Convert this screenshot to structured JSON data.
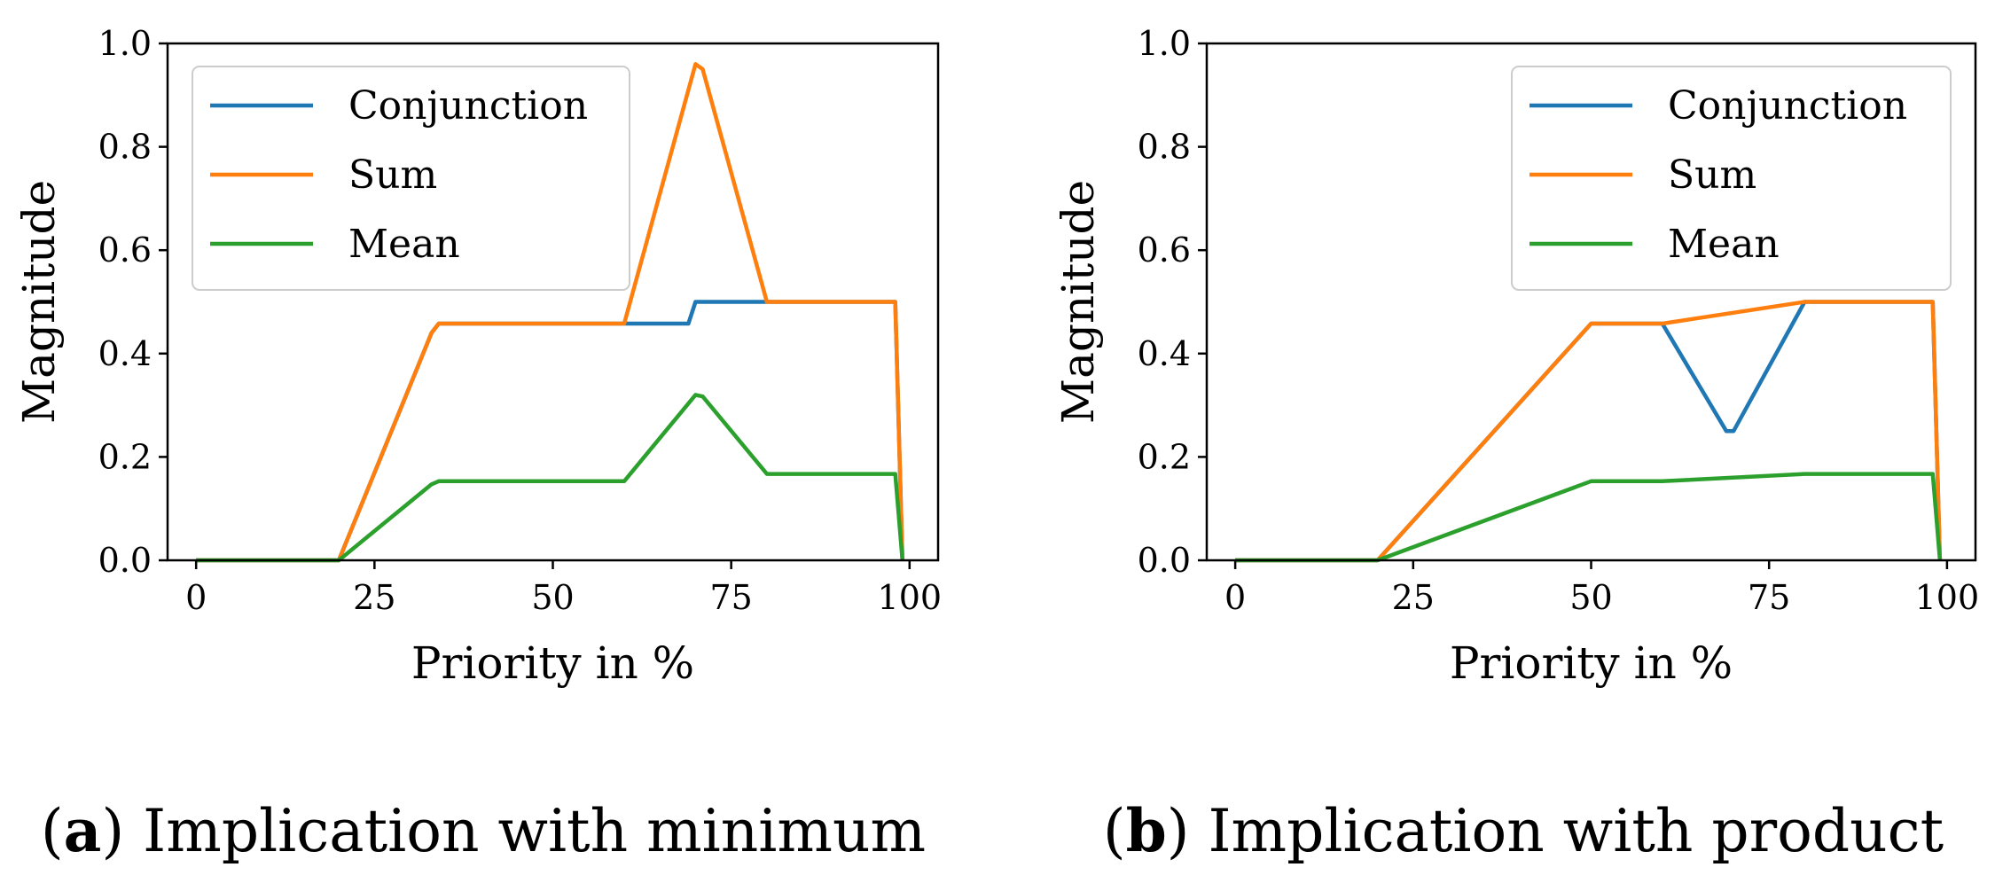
{
  "colors": {
    "Conjunction": "#1f77b4",
    "Sum": "#ff7f0e",
    "Mean": "#2ca02c"
  },
  "chart_data": [
    {
      "type": "line",
      "caption_label": "a",
      "caption_text": "Implication with minimum",
      "xlabel": "Priority in %",
      "ylabel": "Magnitude",
      "xlim": [
        -4,
        104
      ],
      "ylim": [
        0.0,
        1.0
      ],
      "xticks": [
        0,
        25,
        50,
        75,
        100
      ],
      "yticks": [
        0.0,
        0.2,
        0.4,
        0.6,
        0.8,
        1.0
      ],
      "ytick_labels": [
        "0.0",
        "0.2",
        "0.4",
        "0.6",
        "0.8",
        "1.0"
      ],
      "legend_position": "upper-left",
      "series": [
        {
          "name": "Conjunction",
          "x": [
            0,
            20,
            33,
            34,
            60,
            69,
            70,
            80,
            98,
            99
          ],
          "y": [
            0,
            0,
            0.44,
            0.458,
            0.458,
            0.458,
            0.5,
            0.5,
            0.5,
            0
          ]
        },
        {
          "name": "Sum",
          "x": [
            0,
            20,
            33,
            34,
            60,
            70,
            71,
            80,
            98,
            99
          ],
          "y": [
            0,
            0,
            0.44,
            0.458,
            0.458,
            0.96,
            0.95,
            0.5,
            0.5,
            0
          ]
        },
        {
          "name": "Mean",
          "x": [
            0,
            20,
            33,
            34,
            60,
            70,
            71,
            80,
            98,
            99
          ],
          "y": [
            0,
            0,
            0.147,
            0.153,
            0.153,
            0.32,
            0.317,
            0.167,
            0.167,
            0
          ]
        }
      ]
    },
    {
      "type": "line",
      "caption_label": "b",
      "caption_text": "Implication with product",
      "xlabel": "Priority in %",
      "ylabel": "Magnitude",
      "xlim": [
        -4,
        104
      ],
      "ylim": [
        0.0,
        1.0
      ],
      "xticks": [
        0,
        25,
        50,
        75,
        100
      ],
      "yticks": [
        0.0,
        0.2,
        0.4,
        0.6,
        0.8,
        1.0
      ],
      "ytick_labels": [
        "0.0",
        "0.2",
        "0.4",
        "0.6",
        "0.8",
        "1.0"
      ],
      "legend_position": "upper-right",
      "series": [
        {
          "name": "Conjunction",
          "x": [
            0,
            20,
            50,
            60,
            69,
            70,
            80,
            98,
            99
          ],
          "y": [
            0,
            0,
            0.458,
            0.458,
            0.25,
            0.25,
            0.5,
            0.5,
            0
          ]
        },
        {
          "name": "Sum",
          "x": [
            0,
            20,
            50,
            60,
            80,
            98,
            99
          ],
          "y": [
            0,
            0,
            0.458,
            0.458,
            0.5,
            0.5,
            0
          ]
        },
        {
          "name": "Mean",
          "x": [
            0,
            20,
            50,
            60,
            80,
            98,
            99
          ],
          "y": [
            0,
            0,
            0.153,
            0.153,
            0.167,
            0.167,
            0
          ]
        }
      ]
    }
  ]
}
